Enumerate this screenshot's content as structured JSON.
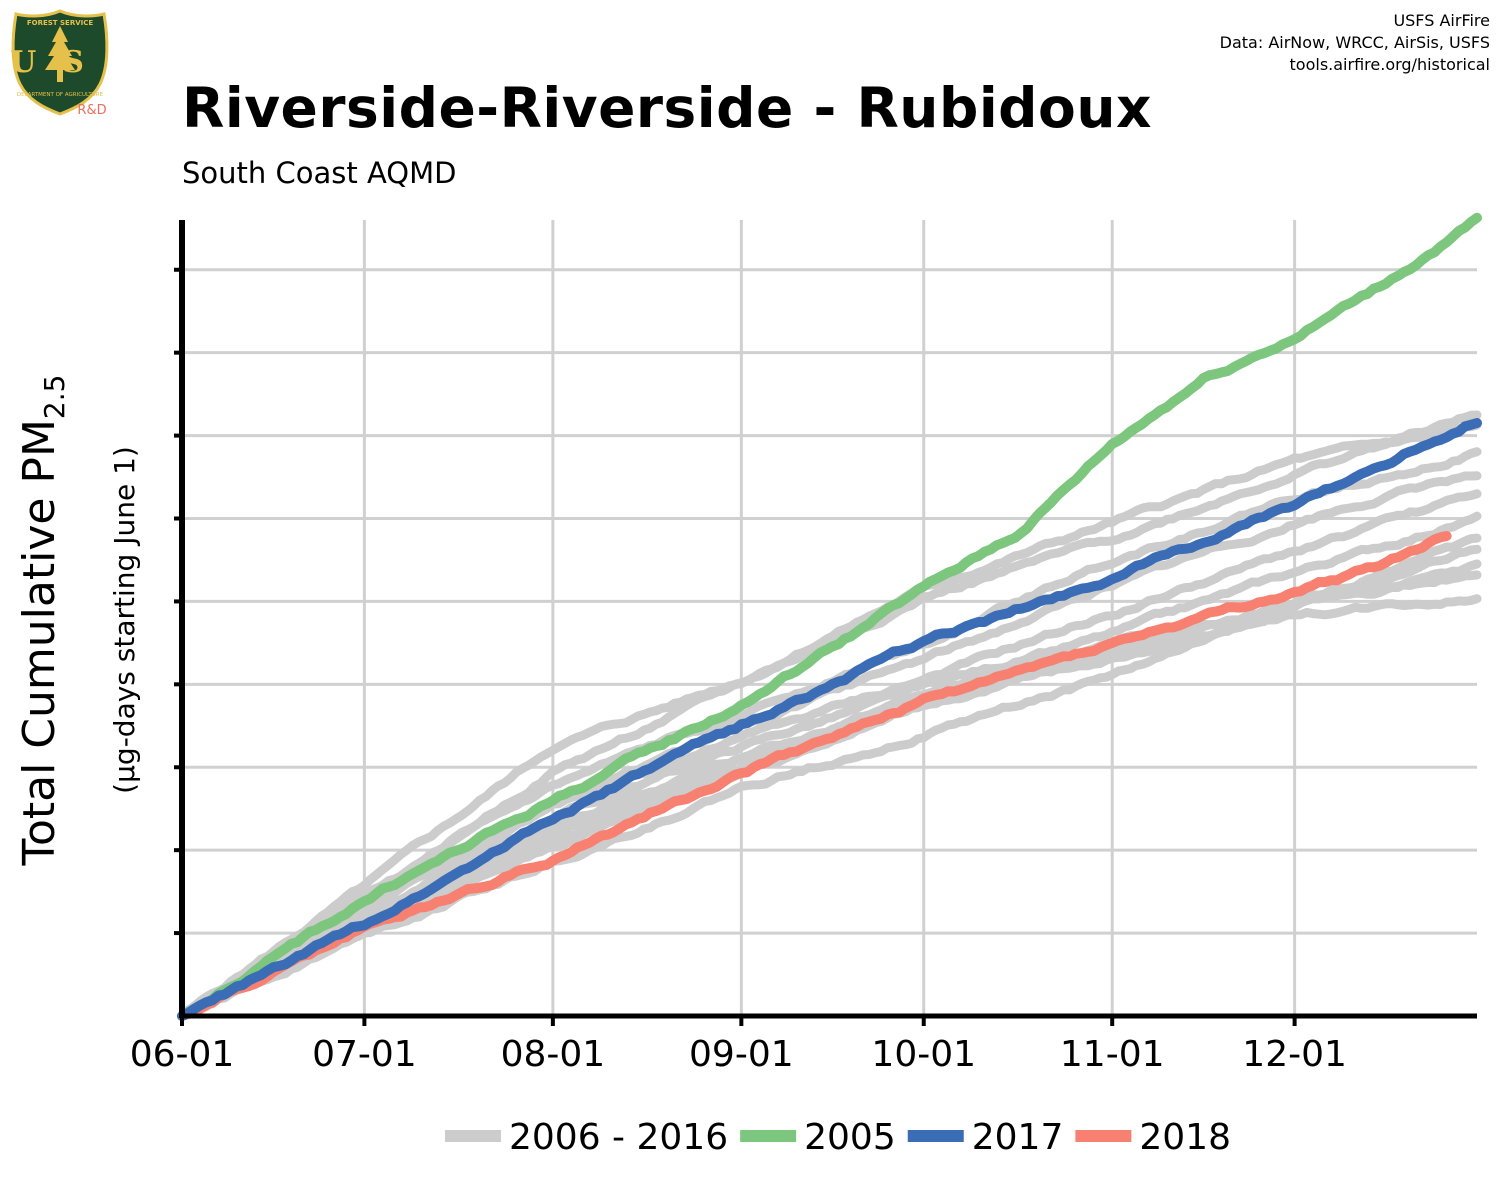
{
  "header": {
    "title": "Riverside-Riverside - Rubidoux",
    "subtitle": "South Coast AQMD",
    "credits": [
      "USFS AirFire",
      "Data: AirNow, WRCC, AirSis, USFS",
      "tools.airfire.org/historical"
    ]
  },
  "logo": {
    "top_text": "FOREST SERVICE",
    "letters": "US",
    "bottom_text": "DEPARTMENT OF AGRICULTURE",
    "tag": "R&D"
  },
  "chart_data": {
    "type": "line",
    "ylabel_main": "Total Cumulative PM",
    "ylabel_sub": "2.5",
    "ylabel_secondary": "(µg-days starting June 1)",
    "x_tick_labels": [
      "06-01",
      "07-01",
      "08-01",
      "09-01",
      "10-01",
      "11-01",
      "12-01"
    ],
    "x_tick_days": [
      0,
      30,
      61,
      92,
      122,
      153,
      183
    ],
    "xlim": [
      0,
      213
    ],
    "ylim": [
      0,
      9.6
    ],
    "y_gridlines": [
      1,
      2,
      3,
      4,
      5,
      6,
      7,
      8,
      9
    ],
    "y_tick_labels_shown": false,
    "grid": true,
    "legend_position": "bottom",
    "legend": [
      {
        "label": "2006 - 2016",
        "color": "#cccccc"
      },
      {
        "label": "2005",
        "color": "#7dc67d"
      },
      {
        "label": "2017",
        "color": "#3a6db5"
      },
      {
        "label": "2018",
        "color": "#f88070"
      }
    ],
    "series": [
      {
        "group": "2006 - 2016",
        "color": "#cccccc",
        "x": [
          0,
          30,
          61,
          92,
          122,
          153,
          183,
          213
        ],
        "y": [
          0,
          1.55,
          3.25,
          4.05,
          5.15,
          5.95,
          6.7,
          7.1
        ]
      },
      {
        "group": "2006 - 2016",
        "color": "#cccccc",
        "x": [
          0,
          30,
          61,
          92,
          122,
          153,
          183,
          213
        ],
        "y": [
          0,
          1.4,
          2.95,
          4.0,
          5.05,
          5.75,
          6.55,
          7.25
        ]
      },
      {
        "group": "2006 - 2016",
        "color": "#cccccc",
        "x": [
          0,
          30,
          61,
          92,
          122,
          153,
          183,
          213
        ],
        "y": [
          0,
          1.45,
          2.75,
          3.65,
          4.5,
          5.5,
          6.25,
          6.8
        ]
      },
      {
        "group": "2006 - 2016",
        "color": "#cccccc",
        "x": [
          0,
          30,
          61,
          92,
          122,
          153,
          183,
          213
        ],
        "y": [
          0,
          1.3,
          2.6,
          3.5,
          4.3,
          5.2,
          5.95,
          6.55
        ]
      },
      {
        "group": "2006 - 2016",
        "color": "#cccccc",
        "x": [
          0,
          30,
          61,
          92,
          122,
          153,
          183,
          213
        ],
        "y": [
          0,
          1.25,
          2.55,
          3.35,
          4.05,
          4.85,
          5.6,
          6.3
        ]
      },
      {
        "group": "2006 - 2016",
        "color": "#cccccc",
        "x": [
          0,
          30,
          61,
          92,
          122,
          153,
          183,
          213
        ],
        "y": [
          0,
          1.2,
          2.4,
          3.25,
          3.95,
          4.6,
          5.35,
          6.0
        ]
      },
      {
        "group": "2006 - 2016",
        "color": "#cccccc",
        "x": [
          0,
          30,
          61,
          92,
          122,
          153,
          183,
          213
        ],
        "y": [
          0,
          1.15,
          2.3,
          3.1,
          3.9,
          4.45,
          5.0,
          5.6
        ]
      },
      {
        "group": "2006 - 2016",
        "color": "#cccccc",
        "x": [
          0,
          30,
          61,
          92,
          122,
          153,
          183,
          213
        ],
        "y": [
          0,
          1.15,
          2.2,
          3.0,
          3.75,
          4.4,
          4.95,
          5.4
        ]
      },
      {
        "group": "2006 - 2016",
        "color": "#cccccc",
        "x": [
          0,
          30,
          61,
          92,
          122,
          153,
          183,
          213
        ],
        "y": [
          0,
          1.05,
          2.1,
          3.1,
          3.85,
          4.3,
          4.9,
          5.35
        ]
      },
      {
        "group": "2006 - 2016",
        "color": "#cccccc",
        "x": [
          0,
          30,
          61,
          92,
          122,
          153,
          183,
          213
        ],
        "y": [
          0,
          1.0,
          2.05,
          2.95,
          3.75,
          4.35,
          4.85,
          5.05
        ]
      },
      {
        "group": "2006 - 2016",
        "color": "#cccccc",
        "x": [
          0,
          30,
          61,
          92,
          122,
          153,
          183,
          213
        ],
        "y": [
          0,
          1.0,
          1.85,
          2.75,
          3.4,
          4.1,
          4.95,
          5.75
        ]
      },
      {
        "group": "2005",
        "color": "#7dc67d",
        "x": [
          0,
          30,
          61,
          92,
          122,
          138,
          153,
          168,
          183,
          198,
          213
        ],
        "y": [
          0,
          1.4,
          2.6,
          3.75,
          5.15,
          5.85,
          6.9,
          7.7,
          8.2,
          8.85,
          9.6
        ]
      },
      {
        "group": "2017",
        "color": "#3a6db5",
        "x": [
          0,
          30,
          61,
          92,
          122,
          153,
          183,
          213
        ],
        "y": [
          0,
          1.1,
          2.4,
          3.5,
          4.5,
          5.3,
          6.15,
          7.2
        ]
      },
      {
        "group": "2018",
        "color": "#f88070",
        "x": [
          0,
          30,
          61,
          92,
          122,
          153,
          183,
          198,
          208
        ],
        "y": [
          0,
          1.05,
          1.9,
          2.95,
          3.8,
          4.5,
          5.1,
          5.45,
          5.8
        ]
      }
    ]
  }
}
